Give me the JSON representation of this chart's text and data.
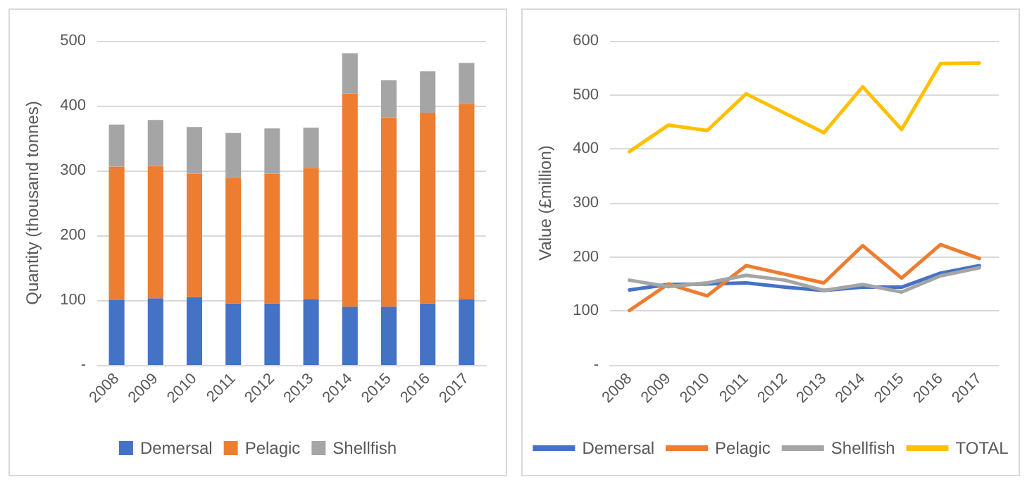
{
  "chart_data": [
    {
      "type": "bar",
      "stacked": true,
      "ylabel": "Quantity (thousand tonnes)",
      "categories": [
        "2008",
        "2009",
        "2010",
        "2011",
        "2012",
        "2013",
        "2014",
        "2015",
        "2016",
        "2017"
      ],
      "ylim": [
        0,
        500
      ],
      "yticks": [
        {
          "value": 0,
          "label": "-"
        },
        100,
        200,
        300,
        400,
        500
      ],
      "grid": "y",
      "legend": "bottom",
      "series": [
        {
          "name": "Demersal",
          "color": "#4472c4",
          "values": [
            100,
            103,
            105,
            95,
            95,
            101,
            90,
            90,
            95,
            101
          ]
        },
        {
          "name": "Pelagic",
          "color": "#ed7d31",
          "values": [
            206,
            204,
            190,
            193,
            200,
            203,
            329,
            292,
            294,
            302
          ]
        },
        {
          "name": "Shellfish",
          "color": "#a5a5a5",
          "values": [
            65,
            71,
            72,
            70,
            70,
            62,
            62,
            57,
            64,
            63
          ]
        }
      ]
    },
    {
      "type": "line",
      "ylabel": "Value (£million)",
      "categories": [
        "2008",
        "2009",
        "2010",
        "2011",
        "2012",
        "2013",
        "2014",
        "2015",
        "2016",
        "2017"
      ],
      "ylim": [
        0,
        600
      ],
      "yticks": [
        {
          "value": 0,
          "label": "-"
        },
        100,
        200,
        300,
        400,
        500,
        600
      ],
      "grid": "y",
      "legend": "bottom",
      "marker": "none",
      "line_style": "solid",
      "series": [
        {
          "name": "Demersal",
          "color": "#4472c4",
          "values": [
            139,
            149,
            150,
            152,
            144,
            138,
            144,
            144,
            170,
            184
          ]
        },
        {
          "name": "Pelagic",
          "color": "#ed7d31",
          "values": [
            101,
            150,
            128,
            184,
            168,
            152,
            221,
            161,
            223,
            197
          ]
        },
        {
          "name": "Shellfish",
          "color": "#a5a5a5",
          "values": [
            157,
            145,
            152,
            166,
            157,
            138,
            149,
            135,
            165,
            180
          ]
        },
        {
          "name": "TOTAL",
          "color": "#ffc000",
          "values": [
            395,
            444,
            434,
            502,
            466,
            430,
            515,
            436,
            558,
            559
          ]
        }
      ]
    }
  ]
}
